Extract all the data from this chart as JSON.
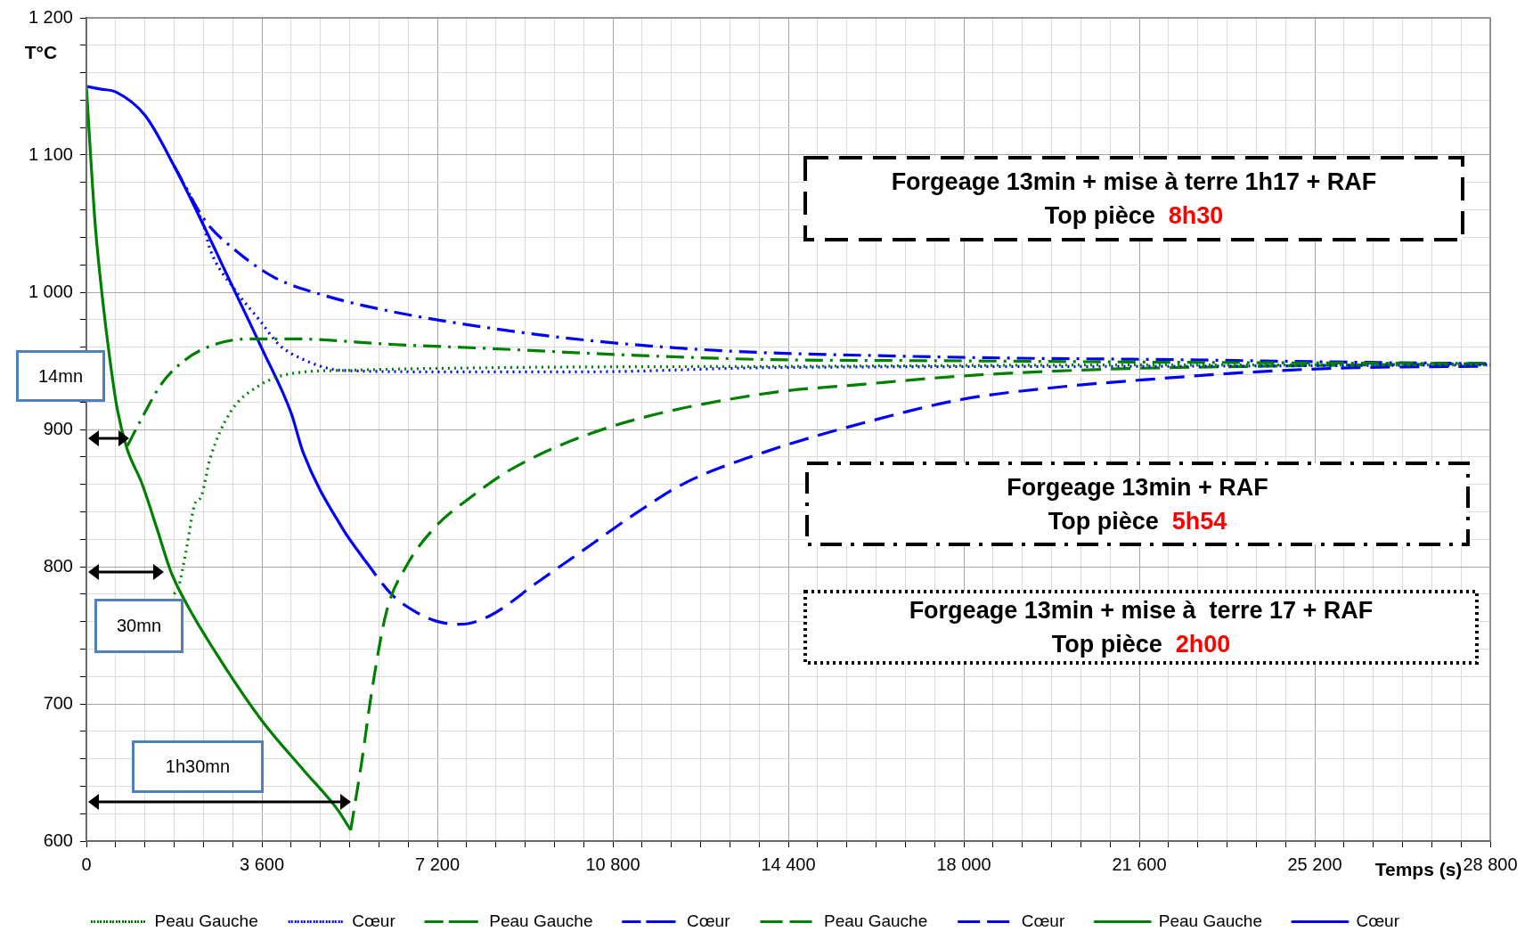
{
  "chart_data": {
    "type": "line",
    "xlabel": "Temps (s)",
    "ylabel": "T°C",
    "legend": "bottom",
    "grid": true,
    "marker": "none",
    "xlim": [
      0,
      28800
    ],
    "ylim": [
      600,
      1200
    ],
    "xticks": [
      0,
      {
        "value": 600,
        "label": null
      },
      {
        "value": 1200,
        "label": null
      },
      {
        "value": 1800,
        "label": null
      },
      {
        "value": 2400,
        "label": null
      },
      {
        "value": 3000,
        "label": null
      },
      {
        "value": 3600,
        "label": "3 600"
      },
      {
        "value": 4200,
        "label": null
      },
      {
        "value": 4800,
        "label": null
      },
      {
        "value": 5400,
        "label": null
      },
      {
        "value": 6000,
        "label": null
      },
      {
        "value": 6600,
        "label": null
      },
      {
        "value": 7200,
        "label": "7 200"
      },
      {
        "value": 7800,
        "label": null
      },
      {
        "value": 8400,
        "label": null
      },
      {
        "value": 9000,
        "label": null
      },
      {
        "value": 9600,
        "label": null
      },
      {
        "value": 10200,
        "label": null
      },
      {
        "value": 10800,
        "label": "10 800"
      },
      {
        "value": 11400,
        "label": null
      },
      {
        "value": 12000,
        "label": null
      },
      {
        "value": 12600,
        "label": null
      },
      {
        "value": 13200,
        "label": null
      },
      {
        "value": 13800,
        "label": null
      },
      {
        "value": 14400,
        "label": "14 400"
      },
      {
        "value": 15000,
        "label": null
      },
      {
        "value": 15600,
        "label": null
      },
      {
        "value": 16200,
        "label": null
      },
      {
        "value": 16800,
        "label": null
      },
      {
        "value": 17400,
        "label": null
      },
      {
        "value": 18000,
        "label": "18 000"
      },
      {
        "value": 18600,
        "label": null
      },
      {
        "value": 19200,
        "label": null
      },
      {
        "value": 19800,
        "label": null
      },
      {
        "value": 20400,
        "label": null
      },
      {
        "value": 21000,
        "label": null
      },
      {
        "value": 21600,
        "label": "21 600"
      },
      {
        "value": 22200,
        "label": null
      },
      {
        "value": 22800,
        "label": null
      },
      {
        "value": 23400,
        "label": null
      },
      {
        "value": 24000,
        "label": null
      },
      {
        "value": 24600,
        "label": null
      },
      {
        "value": 25200,
        "label": "25 200"
      },
      {
        "value": 25800,
        "label": null
      },
      {
        "value": 26400,
        "label": null
      },
      {
        "value": 27000,
        "label": null
      },
      {
        "value": 27600,
        "label": null
      },
      {
        "value": 28200,
        "label": null
      },
      {
        "value": 28800,
        "label": "28 800"
      }
    ],
    "yticks": [
      600,
      {
        "value": 620,
        "label": null
      },
      {
        "value": 640,
        "label": null
      },
      {
        "value": 660,
        "label": null
      },
      {
        "value": 680,
        "label": null
      },
      700,
      {
        "value": 720,
        "label": null
      },
      {
        "value": 740,
        "label": null
      },
      {
        "value": 760,
        "label": null
      },
      {
        "value": 780,
        "label": null
      },
      800,
      {
        "value": 820,
        "label": null
      },
      {
        "value": 840,
        "label": null
      },
      {
        "value": 860,
        "label": null
      },
      {
        "value": 880,
        "label": null
      },
      900,
      {
        "value": 920,
        "label": null
      },
      {
        "value": 940,
        "label": null
      },
      {
        "value": 960,
        "label": null
      },
      {
        "value": 980,
        "label": null
      },
      {
        "value": 1000,
        "label": "1 000"
      },
      {
        "value": 1020,
        "label": null
      },
      {
        "value": 1040,
        "label": null
      },
      {
        "value": 1060,
        "label": null
      },
      {
        "value": 1080,
        "label": null
      },
      {
        "value": 1100,
        "label": "1 100"
      },
      {
        "value": 1120,
        "label": null
      },
      {
        "value": 1140,
        "label": null
      },
      {
        "value": 1160,
        "label": null
      },
      {
        "value": 1180,
        "label": null
      },
      {
        "value": 1200,
        "label": "1 200"
      }
    ],
    "series": [
      {
        "name": "Peau Gauche",
        "color": "#008000",
        "line_style": "dotted",
        "x": [
          1800,
          1888,
          2038,
          2239,
          2340,
          2540,
          2942,
          3545,
          4248,
          5250,
          8264,
          14400,
          21600,
          28800
        ],
        "values": [
          780,
          785,
          810,
          847,
          850,
          879,
          912,
          932,
          941,
          943,
          945,
          946,
          947,
          947
        ]
      },
      {
        "name": "Cœur",
        "color": "#0000ff",
        "line_style": "dotted",
        "x": [
          1800,
          2400,
          2540,
          3042,
          3545,
          3946,
          4449,
          5250,
          7252,
          10265,
          13889,
          21600,
          28800
        ],
        "values": [
          1092,
          1049,
          1031,
          1002,
          980,
          962,
          951,
          943,
          942,
          942,
          945,
          946,
          947
        ]
      },
      {
        "name": "Peau Gauche",
        "color": "#008000",
        "line_style": "dashdot",
        "x": [
          840,
          1135,
          1536,
          2038,
          2641,
          3344,
          4248,
          6255,
          8264,
          11276,
          13889,
          17975,
          21992,
          28719
        ],
        "values": [
          888,
          908,
          933,
          951,
          962,
          966,
          966,
          962,
          959,
          954,
          951,
          950,
          949,
          948
        ]
      },
      {
        "name": "Cœur",
        "color": "#0000ff",
        "line_style": "dashdot",
        "x": [
          1800,
          2440,
          3042,
          3846,
          4850,
          6255,
          8264,
          10269,
          12281,
          13889,
          15967,
          18979,
          21992,
          26008,
          28719
        ],
        "values": [
          1092,
          1052,
          1031,
          1011,
          998,
          986,
          974,
          965,
          959,
          956,
          954,
          952,
          951,
          949,
          948
        ]
      },
      {
        "name": "Peau Gauche",
        "color": "#008000",
        "line_style": "dashed",
        "x": [
          5422,
          5653,
          5854,
          6155,
          6557,
          7159,
          7862,
          8766,
          10675,
          13889,
          15967,
          17975,
          20987,
          23999,
          28719
        ],
        "values": [
          608,
          659,
          709,
          767,
          800,
          829,
          850,
          872,
          901,
          926,
          933,
          939,
          944,
          946,
          948
        ]
      },
      {
        "name": "Cœur",
        "color": "#0000ff",
        "line_style": "dashed",
        "x": [
          5704,
          6256,
          6758,
          7210,
          7662,
          8264,
          9268,
          10273,
          11277,
          12281,
          13958,
          15967,
          17975,
          19983,
          21992,
          23999,
          26008,
          28719
        ],
        "values": [
          805,
          780,
          767,
          760,
          758,
          764,
          789,
          814,
          839,
          861,
          884,
          905,
          922,
          931,
          937,
          942,
          945,
          946
        ]
      },
      {
        "name": "Peau Gauche",
        "color": "#008000",
        "line_style": "solid",
        "x": [
          0,
          80,
          181,
          331,
          482,
          632,
          833,
          1135,
          1436,
          1737,
          2038,
          2641,
          3595,
          4449,
          5152,
          5422
        ],
        "values": [
          1150,
          1103,
          1049,
          995,
          951,
          915,
          886,
          861,
          829,
          796,
          774,
          738,
          688,
          652,
          623,
          608
        ]
      },
      {
        "name": "Cœur",
        "color": "#0000ff",
        "line_style": "solid",
        "x": [
          0,
          300,
          600,
          1200,
          1800,
          2400,
          3000,
          3600,
          4200,
          4449,
          5252,
          5704
        ],
        "values": [
          1150,
          1148,
          1146,
          1129,
          1092,
          1049,
          1004,
          959,
          912,
          883,
          828,
          805
        ]
      }
    ],
    "annotations": [
      "14mn",
      "30mn",
      "1h30mn",
      "Forgeage 13min + mise à terre 1h17 + RAF",
      "Top pièce",
      "8h30",
      "Forgeage 13min + RAF",
      "Top pièce",
      "5h54",
      "Forgeage 13min + mise à  terre 17 + RAF",
      "Top pièce",
      "2h00"
    ]
  }
}
